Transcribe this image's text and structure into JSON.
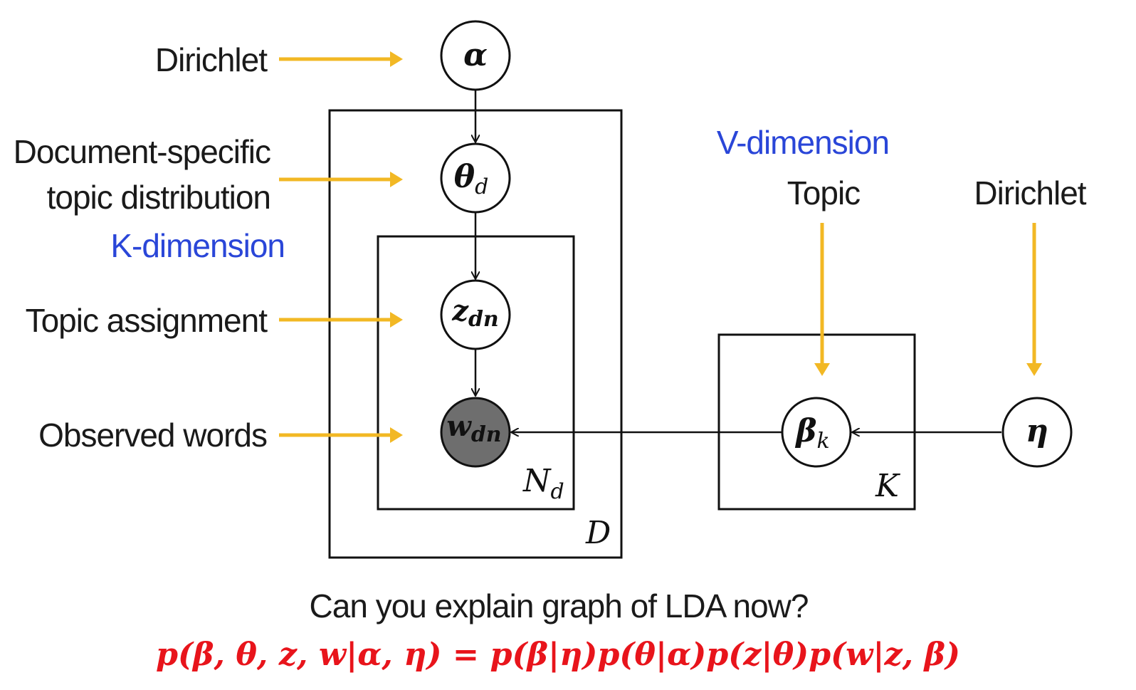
{
  "labels": {
    "dirichlet_left": "Dirichlet",
    "doc_topic_line1": "Document-specific",
    "doc_topic_line2": "topic distribution",
    "k_dimension": "K-dimension",
    "topic_assignment": "Topic assignment",
    "observed_words": "Observed words",
    "v_dimension": "V-dimension",
    "topic": "Topic",
    "dirichlet_right": "Dirichlet"
  },
  "nodes": {
    "alpha": "α",
    "theta": "θ",
    "theta_sub": "d",
    "z": "z",
    "z_sub": "dn",
    "w": "w",
    "w_sub": "dn",
    "beta": "β",
    "beta_sub": "k",
    "eta": "η"
  },
  "plates": {
    "documents": "D",
    "words": "N",
    "words_sub": "d",
    "topics": "K"
  },
  "question": "Can you explain graph of LDA now?",
  "formula": "p(β, θ, z, w|α, η) = p(β|η)p(θ|α)p(z|θ)p(w|z, β)",
  "colors": {
    "arrow_accent": "#f2b824",
    "dimension_text": "#2a46d8",
    "formula": "#e8141b",
    "observed_node": "#6e6e6e"
  }
}
